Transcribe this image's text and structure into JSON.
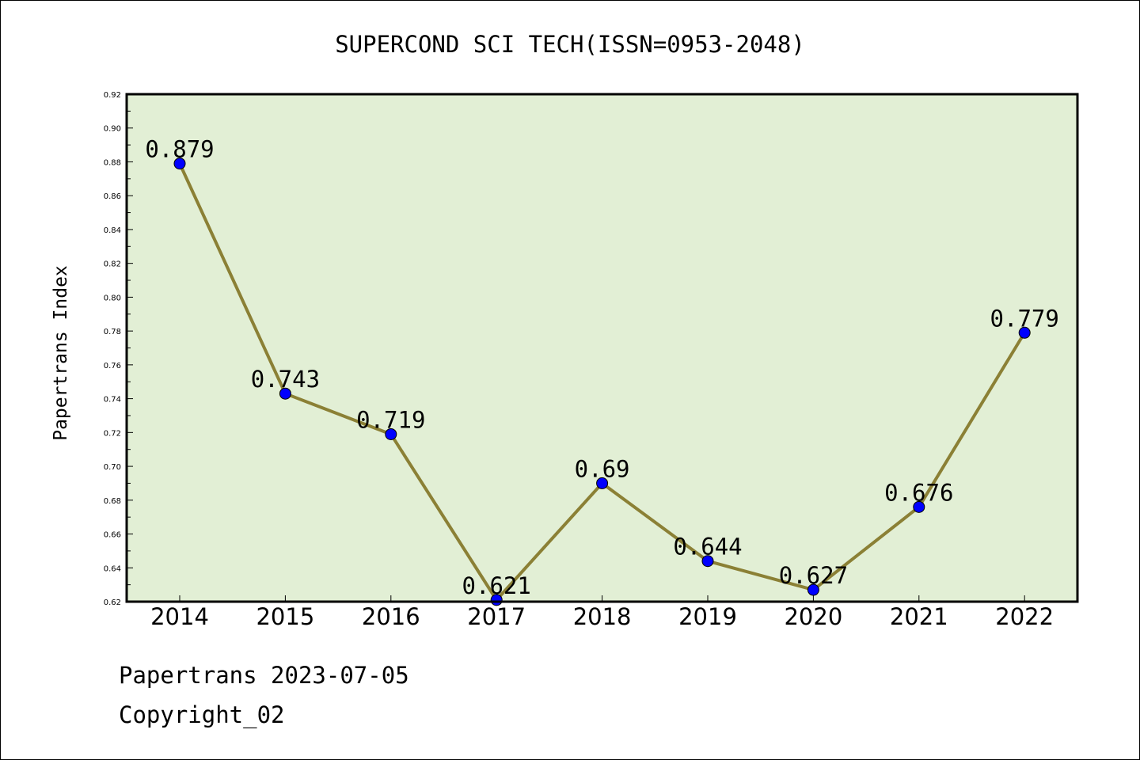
{
  "chart_data": {
    "type": "line",
    "title": "SUPERCOND SCI TECH(ISSN=0953-2048)",
    "xlabel": "",
    "ylabel": "Papertrans Index",
    "categories": [
      "2014",
      "2015",
      "2016",
      "2017",
      "2018",
      "2019",
      "2020",
      "2021",
      "2022"
    ],
    "values": [
      0.879,
      0.743,
      0.719,
      0.621,
      0.69,
      0.644,
      0.627,
      0.676,
      0.779
    ],
    "data_labels": [
      "0.879",
      "0.743",
      "0.719",
      "0.621",
      "0.69",
      "0.644",
      "0.627",
      "0.676",
      "0.779"
    ],
    "ylim": [
      0.62,
      0.92
    ],
    "yticks": [
      "0.62",
      "0.64",
      "0.66",
      "0.68",
      "0.70",
      "0.72",
      "0.74",
      "0.76",
      "0.78",
      "0.80",
      "0.82",
      "0.84",
      "0.86",
      "0.88",
      "0.90",
      "0.92"
    ],
    "grid": false,
    "colors": {
      "plot_background": "#e2efd5",
      "line": "#8b8035",
      "marker": "#0000ff"
    }
  },
  "footer": {
    "line1": "Papertrans 2023-07-05",
    "line2": "Copyright_02"
  }
}
